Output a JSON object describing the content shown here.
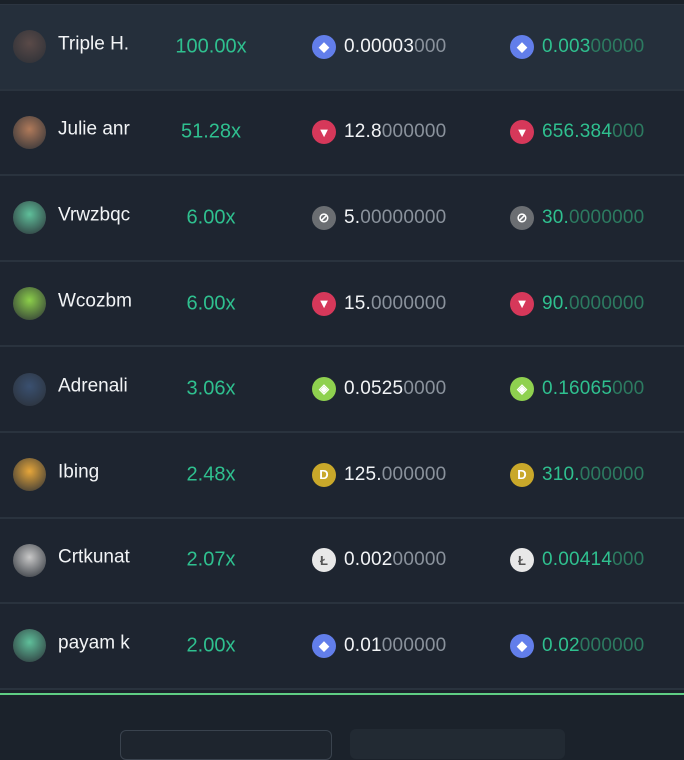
{
  "rows": [
    {
      "name": "Triple H.",
      "multiplier": "100.00x",
      "coin": "eth-icon",
      "coin_color": "#627eea",
      "bet_main": "0.00003",
      "bet_dim": "000",
      "payout_main": "0.003",
      "payout_dim": "00000",
      "avatar_color": "#5a4a48",
      "highlighted": true
    },
    {
      "name": "Julie anr",
      "multiplier": "51.28x",
      "coin": "tron-icon",
      "coin_color": "#d6385a",
      "bet_main": "12.8",
      "bet_dim": "000000",
      "payout_main": "656.384",
      "payout_dim": "000",
      "avatar_color": "#b07a5a"
    },
    {
      "name": "Vrwzbqc",
      "multiplier": "6.00x",
      "coin": "stellar-icon",
      "coin_color": "#6b6e72",
      "bet_main": "5.",
      "bet_dim": "00000000",
      "payout_main": "30.",
      "payout_dim": "0000000",
      "avatar_color": "#5fbf9a"
    },
    {
      "name": "Wcozbm",
      "multiplier": "6.00x",
      "coin": "tron-icon",
      "coin_color": "#d6385a",
      "bet_main": "15.",
      "bet_dim": "0000000",
      "payout_main": "90.",
      "payout_dim": "0000000",
      "avatar_color": "#8ccf4a"
    },
    {
      "name": "Adrenali",
      "multiplier": "3.06x",
      "coin": "eos-icon",
      "coin_color": "#8fd14f",
      "bet_main": "0.0525",
      "bet_dim": "0000",
      "payout_main": "0.16065",
      "payout_dim": "000",
      "avatar_color": "#3a5070"
    },
    {
      "name": "Ibing",
      "multiplier": "2.48x",
      "coin": "doge-icon",
      "coin_color": "#c9a82a",
      "bet_main": "125.",
      "bet_dim": "000000",
      "payout_main": "310.",
      "payout_dim": "000000",
      "avatar_color": "#e6a63a"
    },
    {
      "name": "Crtkunat",
      "multiplier": "2.07x",
      "coin": "litecoin-icon",
      "coin_color": "#e8e8e8",
      "bet_main": "0.002",
      "bet_dim": "00000",
      "payout_main": "0.00414",
      "payout_dim": "000",
      "avatar_color": "#c8c8c8"
    },
    {
      "name": "payam k",
      "multiplier": "2.00x",
      "coin": "eth-icon",
      "coin_color": "#627eea",
      "bet_main": "0.01",
      "bet_dim": "000000",
      "payout_main": "0.02",
      "payout_dim": "000000",
      "avatar_color": "#5fbf9a"
    }
  ],
  "coin_glyphs": {
    "eth-icon": "◆",
    "tron-icon": "▼",
    "stellar-icon": "⊘",
    "eos-icon": "◈",
    "doge-icon": "D",
    "litecoin-icon": "Ł"
  }
}
